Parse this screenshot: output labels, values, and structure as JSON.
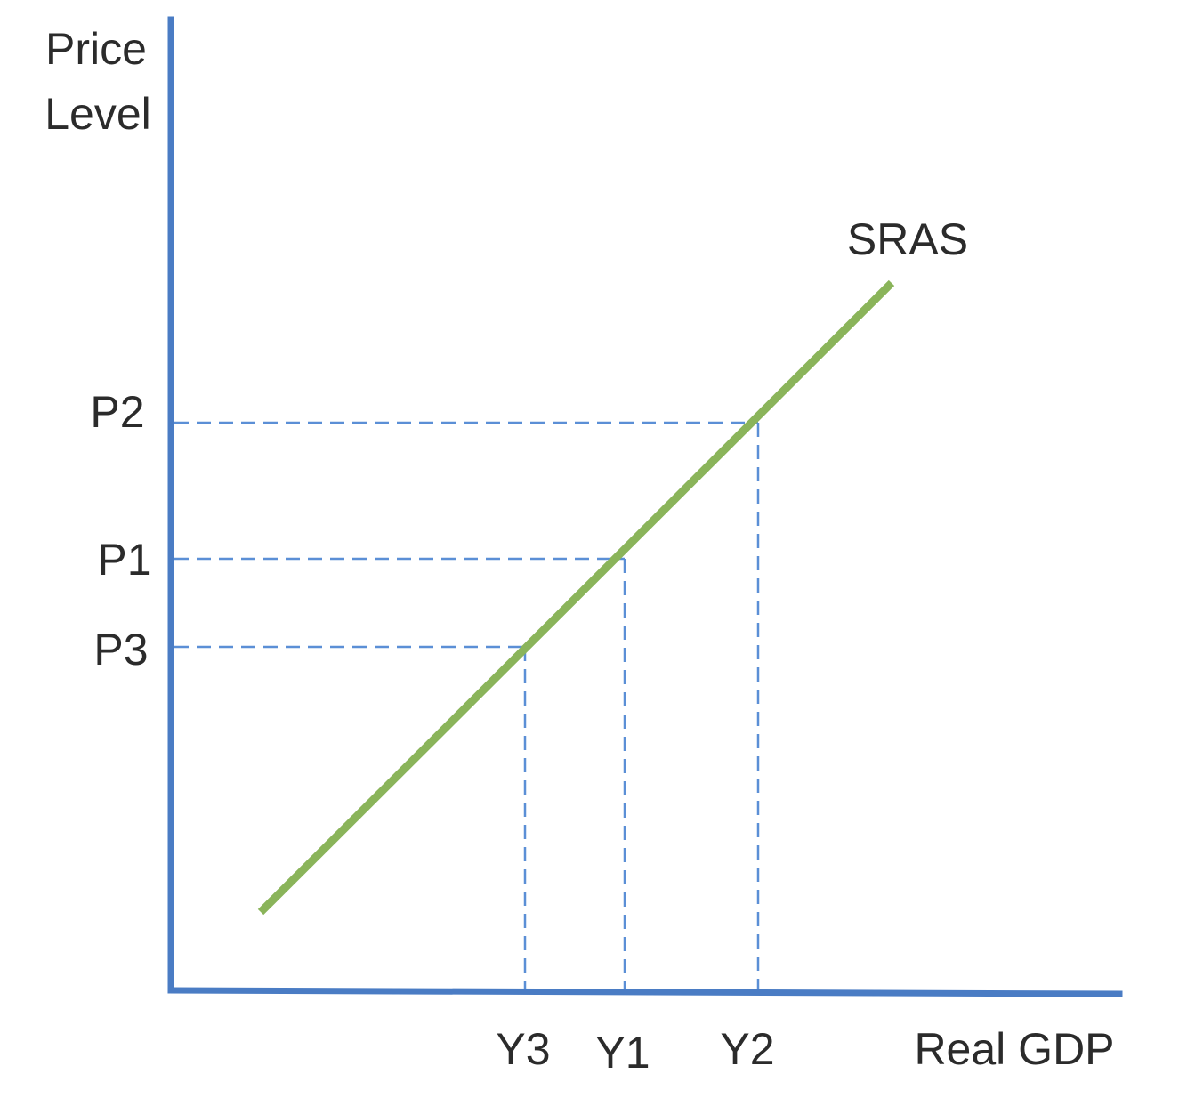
{
  "axes": {
    "y_label_line1": "Price",
    "y_label_line2": "Level",
    "x_label": "Real GDP"
  },
  "curve": {
    "label": "SRAS"
  },
  "price_levels": [
    {
      "label": "P2"
    },
    {
      "label": "P1"
    },
    {
      "label": "P3"
    }
  ],
  "output_levels": [
    {
      "label": "Y3"
    },
    {
      "label": "Y1"
    },
    {
      "label": "Y2"
    }
  ],
  "colors": {
    "axis": "#4a7cc4",
    "guide": "#5b8fd6",
    "curve": "#8ab45a",
    "text": "#2b2b2b"
  }
}
